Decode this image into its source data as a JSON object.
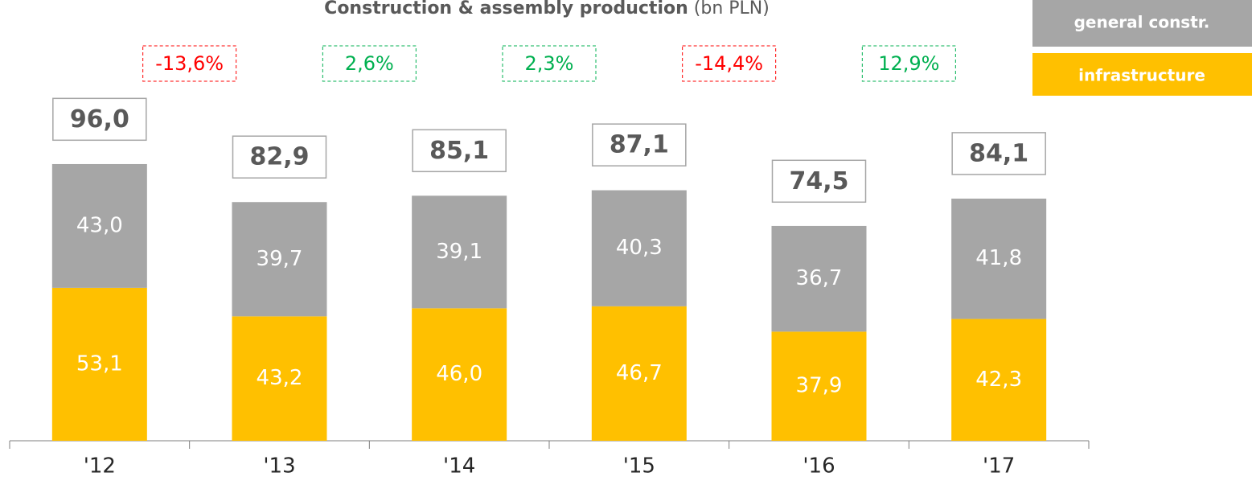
{
  "chart_data": {
    "type": "stacked_bar",
    "title": "Construction & assembly production",
    "title_unit": "(bn PLN)",
    "categories": [
      "'12",
      "'13",
      "'14",
      "'15",
      "'16",
      "'17"
    ],
    "series": [
      {
        "name": "infrastructure",
        "color": "#FFC000",
        "values": [
          53.1,
          43.2,
          46.0,
          46.7,
          37.9,
          42.3
        ],
        "value_labels": [
          "53,1",
          "43,2",
          "46,0",
          "46,7",
          "37,9",
          "42,3"
        ]
      },
      {
        "name": "general constr.",
        "color": "#A6A6A6",
        "values": [
          43.0,
          39.7,
          39.1,
          40.3,
          36.7,
          41.8
        ],
        "value_labels": [
          "43,0",
          "39,7",
          "39,1",
          "40,3",
          "36,7",
          "41,8"
        ]
      }
    ],
    "totals": [
      96.0,
      82.9,
      85.1,
      87.1,
      74.5,
      84.1
    ],
    "total_labels": [
      "96,0",
      "82,9",
      "85,1",
      "87,1",
      "74,5",
      "84,1"
    ],
    "changes": [
      -13.6,
      2.6,
      2.3,
      -14.4,
      12.9
    ],
    "change_labels": [
      "-13,6%",
      "2,6%",
      "2,3%",
      "-14,4%",
      "12,9%"
    ],
    "change_colors": {
      "negative": "#FF0000",
      "positive": "#00B050"
    }
  }
}
